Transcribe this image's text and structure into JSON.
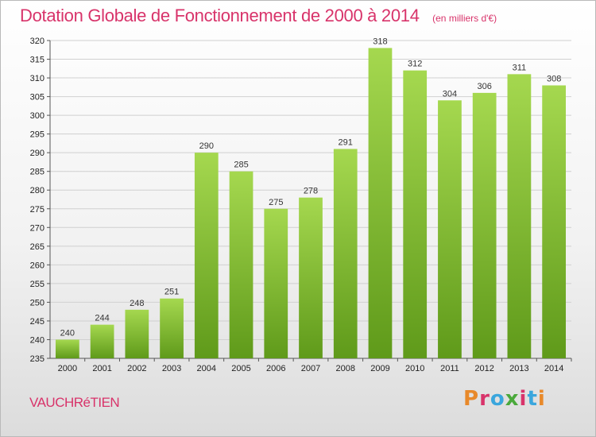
{
  "header": {
    "title": "Dotation Globale de Fonctionnement de 2000 à 2014",
    "unit": "(en milliers d'€)"
  },
  "footer": {
    "place": "VAUCHRéTIEN",
    "logo_text": "Proxiti",
    "logo_colors": [
      "#e8892a",
      "#d8336a",
      "#3aa6dd",
      "#4aa93b",
      "#d8336a",
      "#3aa6dd",
      "#e8892a"
    ]
  },
  "colors": {
    "title": "#d8336a",
    "bar_top": "#a5d84f",
    "bar_bottom": "#5f9a1a",
    "grid": "#d0d0d0"
  },
  "chart_data": {
    "type": "bar",
    "title": "Dotation Globale de Fonctionnement de 2000 à 2014",
    "subtitle": "(en milliers d'€)",
    "xlabel": "",
    "ylabel": "",
    "categories": [
      "2000",
      "2001",
      "2002",
      "2003",
      "2004",
      "2005",
      "2006",
      "2007",
      "2008",
      "2009",
      "2010",
      "2011",
      "2012",
      "2013",
      "2014"
    ],
    "values": [
      240,
      244,
      248,
      251,
      290,
      285,
      275,
      278,
      291,
      318,
      312,
      304,
      306,
      311,
      308
    ],
    "ylim": [
      235,
      320
    ],
    "ytick_step": 5,
    "grid": true,
    "legend": "none"
  }
}
